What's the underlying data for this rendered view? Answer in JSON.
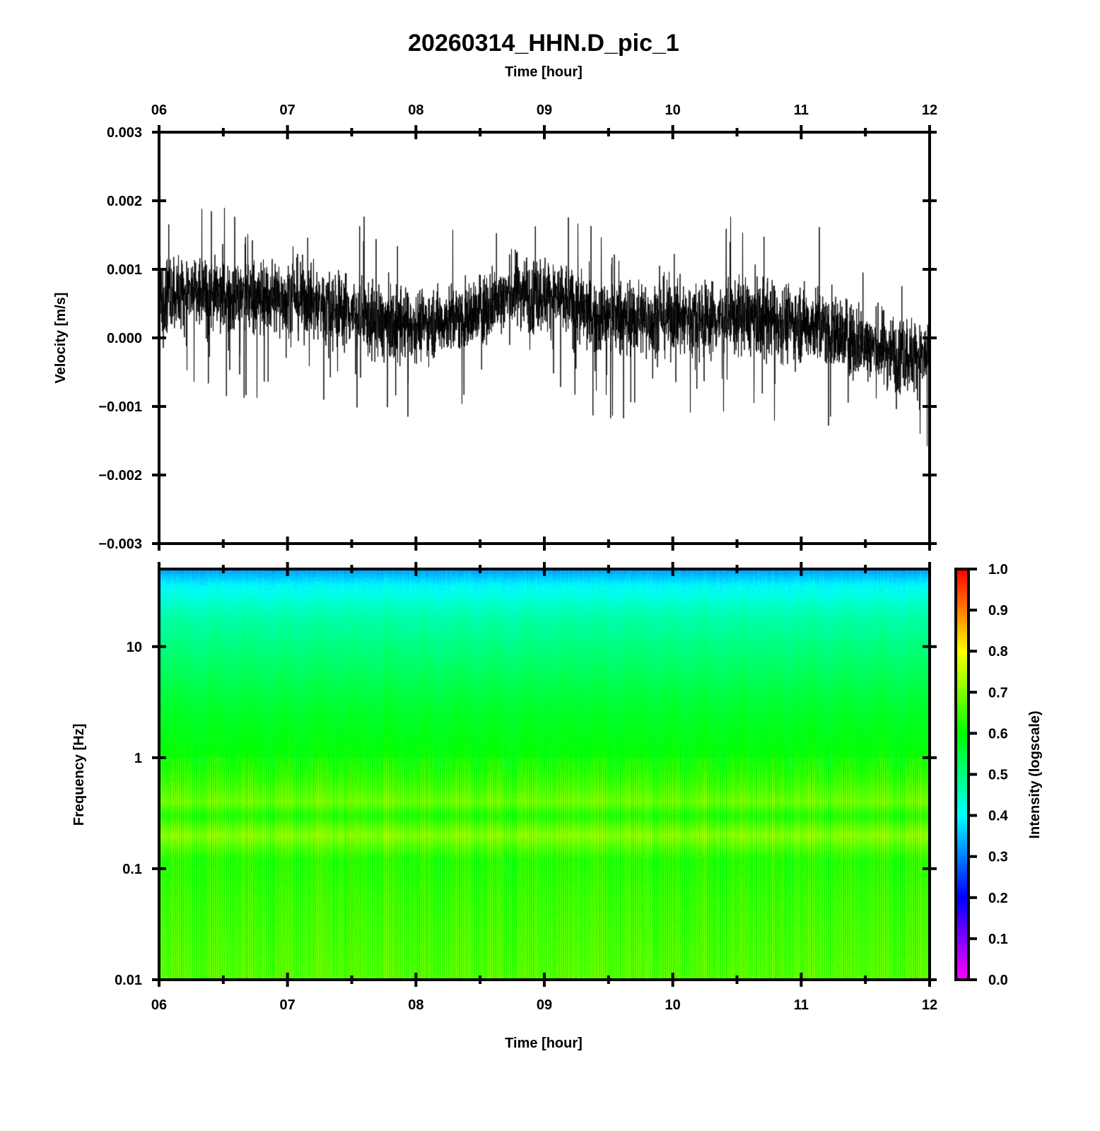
{
  "title": "20260314_HHN.D_pic_1",
  "chart_data": [
    {
      "type": "line",
      "name": "waveform",
      "title": "20260314_HHN.D_pic_1",
      "xlabel": "Time [hour]",
      "ylabel": "Velocity [m/s]",
      "xlim": [
        6,
        12
      ],
      "ylim": [
        -0.003,
        0.003
      ],
      "x_tick_labels": [
        "06",
        "07",
        "08",
        "09",
        "10",
        "11",
        "12"
      ],
      "y_ticks": [
        0.003,
        0.002,
        0.001,
        0.0,
        -0.001,
        -0.002,
        -0.003
      ],
      "y_tick_labels": [
        "0.003",
        "0.002",
        "0.001",
        "0.000",
        "−0.001",
        "−0.002",
        "−0.003"
      ],
      "color": "#000000",
      "trend": {
        "x": [
          6.0,
          6.5,
          7.0,
          7.5,
          7.7,
          8.0,
          8.4,
          8.8,
          9.1,
          9.4,
          10.0,
          10.6,
          11.1,
          11.5,
          12.0
        ],
        "mean": [
          0.0007,
          0.0006,
          0.0006,
          0.0004,
          0.0002,
          0.0002,
          0.0003,
          0.0007,
          0.0006,
          0.0003,
          0.0003,
          0.0003,
          0.0002,
          -0.0001,
          -0.0003
        ],
        "band_halfwidth": [
          0.0005,
          0.0005,
          0.0005,
          0.0005,
          0.0005,
          0.00045,
          0.00045,
          0.0005,
          0.0005,
          0.0005,
          0.0005,
          0.0005,
          0.0005,
          0.0005,
          0.0005
        ],
        "spike_max": 0.0025,
        "spike_min": -0.0019
      }
    },
    {
      "type": "heatmap",
      "name": "spectrogram",
      "xlabel": "Time [hour]",
      "ylabel": "Frequency [Hz]",
      "xlim": [
        6,
        12
      ],
      "ylim": [
        0.01,
        50
      ],
      "yscale": "log",
      "x_tick_labels": [
        "06",
        "07",
        "08",
        "09",
        "10",
        "11",
        "12"
      ],
      "y_ticks": [
        10,
        1,
        0.1,
        0.01
      ],
      "y_tick_labels": [
        "10",
        "1",
        "0.1",
        "0.01"
      ],
      "intensity_profile": {
        "freq": [
          50,
          35,
          20,
          10,
          3,
          1,
          0.6,
          0.4,
          0.3,
          0.2,
          0.12,
          0.05,
          0.01
        ],
        "intensity": [
          0.32,
          0.4,
          0.46,
          0.5,
          0.56,
          0.6,
          0.64,
          0.68,
          0.62,
          0.7,
          0.62,
          0.64,
          0.66
        ]
      },
      "colorbar": {
        "label": "Intensity (logscale)",
        "range": [
          0,
          1
        ],
        "ticks": [
          1.0,
          0.9,
          0.8,
          0.7,
          0.6,
          0.5,
          0.4,
          0.3,
          0.2,
          0.1,
          0.0
        ],
        "tick_labels": [
          "1.0",
          "0.9",
          "0.8",
          "0.7",
          "0.6",
          "0.5",
          "0.4",
          "0.3",
          "0.2",
          "0.1",
          "0.0"
        ],
        "colors": [
          "#ff00ff",
          "#8000ff",
          "#0000ff",
          "#0080ff",
          "#00ffff",
          "#00ff80",
          "#00ff00",
          "#80ff00",
          "#ffff00",
          "#ff8000",
          "#ff0000"
        ]
      }
    }
  ]
}
